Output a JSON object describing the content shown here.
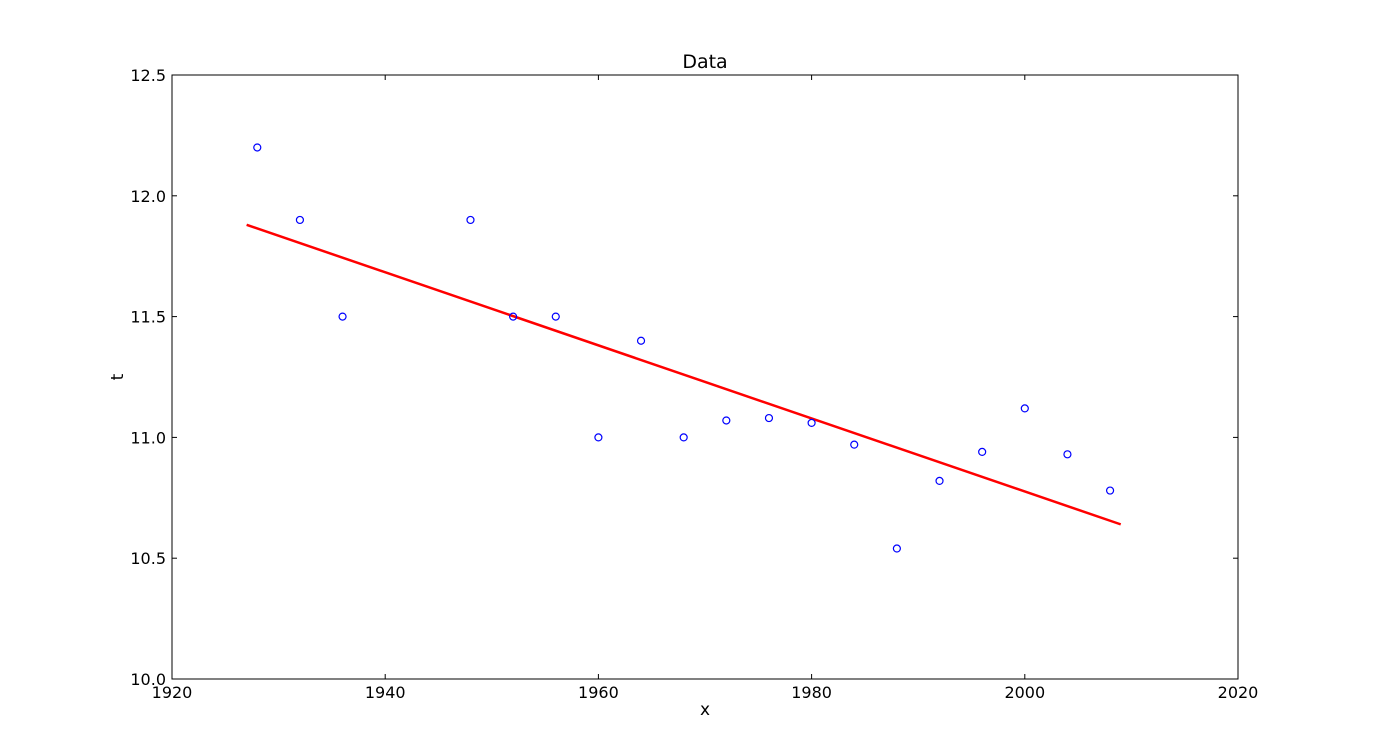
{
  "chart_data": {
    "type": "scatter",
    "title": "Data",
    "xlabel": "x",
    "ylabel": "t",
    "xlim": [
      1920,
      2020
    ],
    "ylim": [
      10.0,
      12.5
    ],
    "xticks": [
      "1920",
      "1940",
      "1960",
      "1980",
      "2000",
      "2020"
    ],
    "yticks": [
      "10.0",
      "10.5",
      "11.0",
      "11.5",
      "12.0",
      "12.5"
    ],
    "grid": false,
    "legend": "none",
    "series": [
      {
        "kind": "scatter",
        "color": "#0000ff",
        "marker": "open-circle",
        "x": [
          1928,
          1932,
          1936,
          1948,
          1952,
          1956,
          1960,
          1964,
          1968,
          1972,
          1976,
          1980,
          1984,
          1988,
          1992,
          1996,
          2000,
          2004,
          2008
        ],
        "y": [
          12.2,
          11.9,
          11.5,
          11.9,
          11.5,
          11.5,
          11.0,
          11.4,
          11.0,
          11.07,
          11.08,
          11.06,
          10.97,
          10.54,
          10.82,
          10.94,
          11.12,
          10.93,
          10.78
        ]
      },
      {
        "kind": "line",
        "color": "#ff0000",
        "x": [
          1927,
          2009
        ],
        "y": [
          11.88,
          10.64
        ]
      }
    ]
  }
}
